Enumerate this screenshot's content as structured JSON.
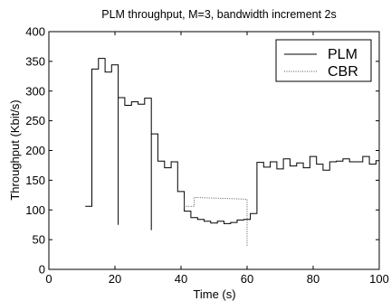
{
  "chart_data": {
    "type": "line",
    "title": "PLM throughput, M=3, bandwidth increment 2s",
    "xlabel": "Time (s)",
    "ylabel": "Throughput (Kbit/s)",
    "xlim": [
      0,
      100
    ],
    "ylim": [
      0,
      400
    ],
    "xticks": [
      0,
      20,
      40,
      60,
      80,
      100
    ],
    "yticks": [
      0,
      50,
      100,
      150,
      200,
      250,
      300,
      350,
      400
    ],
    "grid": false,
    "legend_position": "top-right",
    "series": [
      {
        "name": "PLM",
        "style": "solid",
        "color": "#000000",
        "runs": [
          {
            "x": [
              11,
              13,
              13,
              15,
              15,
              17,
              17,
              19,
              19,
              21,
              21,
              23,
              23,
              25,
              25,
              27,
              27,
              29,
              29,
              31,
              31,
              33,
              33,
              35,
              35,
              37,
              37,
              39,
              39,
              41,
              41,
              43,
              43,
              45,
              45,
              47,
              47,
              49,
              49,
              51,
              51,
              53,
              53,
              55,
              55,
              57,
              57,
              59,
              59,
              61,
              61,
              63,
              63,
              65,
              65,
              67,
              67,
              69,
              69,
              71,
              71,
              73,
              73,
              75,
              75,
              77,
              77,
              79,
              79,
              81,
              81,
              83,
              83,
              85,
              85,
              87,
              87,
              89,
              89,
              91,
              91,
              93,
              93,
              95,
              95,
              97,
              97,
              99,
              99,
              100
            ],
            "y": [
              106,
              106,
              337,
              337,
              355,
              355,
              332,
              332,
              344,
              344,
              289,
              289,
              276,
              276,
              282,
              282,
              278,
              278,
              288,
              288,
              228,
              228,
              182,
              182,
              171,
              171,
              181,
              181,
              131,
              131,
              98,
              98,
              87,
              87,
              84,
              84,
              81,
              81,
              78,
              78,
              81,
              81,
              77,
              77,
              79,
              79,
              83,
              83,
              84,
              84,
              94,
              94,
              180,
              180,
              172,
              172,
              181,
              181,
              169,
              169,
              186,
              186,
              174,
              174,
              179,
              179,
              171,
              171,
              190,
              190,
              177,
              177,
              167,
              167,
              181,
              181,
              182,
              182,
              186,
              186,
              181,
              181,
              181,
              181,
              190,
              190,
              177,
              177,
              183,
              183
            ]
          },
          {
            "x": [
              21,
              21
            ],
            "y": [
              75,
              289
            ]
          },
          {
            "x": [
              31,
              31
            ],
            "y": [
              66,
              228
            ]
          }
        ]
      },
      {
        "name": "CBR",
        "style": "dotted",
        "color": "#555555",
        "runs": [
          {
            "x": [
              60,
              60,
              44,
              44,
              41,
              41
            ],
            "y": [
              40,
              118,
              121,
              106,
              106,
              120
            ]
          }
        ]
      }
    ]
  }
}
